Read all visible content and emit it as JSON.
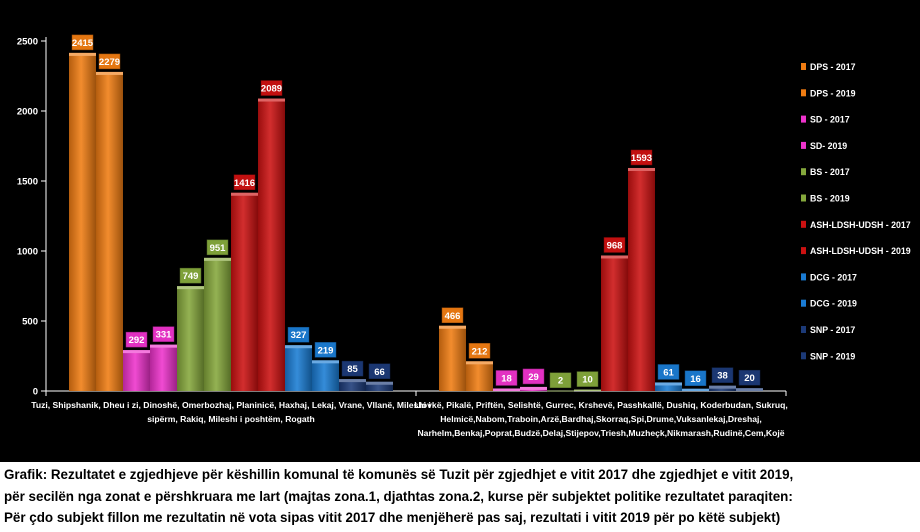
{
  "chart_data": {
    "type": "bar",
    "categories": [
      "Tuzi, Shipshanik, Dheu i zi, Dinoshë, Omerbozhaj, Planinicë, Haxhaj, Lekaj, Vrane, Vllanë, Mileshi i sipërm, Rakiq, Mileshi i poshtëm, Rogath",
      "Llovkë, Pikalë, Priftën, Selishtë, Gurrec, Krshevë, Passhkallë, Dushiq, Koderbudan, Sukruq, Helmicë,Nabom,Traboin,Arzë,Bardhaj,Skorraq,Spi,Drume,Vuksanlekaj,Dreshaj, Narhelm,Benkaj,Poprat,Budzë,Delaj,Stijepov,Triesh,Muzheçk,Nikmarash,Rudinë,Cem,Kojë"
    ],
    "category_lines": [
      [
        "Tuzi, Shipshanik, Dheu i zi, Dinoshë, Omerbozhaj, Planinicë, Haxhaj, Lekaj, Vrane, Vllanë, Mileshi i",
        "sipërm, Rakiq, Mileshi i poshtëm, Rogath"
      ],
      [
        "Llovkë, Pikalë, Priftën, Selishtë, Gurrec, Krshevë, Passhkallë, Dushiq, Koderbudan, Sukruq,",
        "Helmicë,Nabom,Traboin,Arzë,Bardhaj,Skorraq,Spi,Drume,Vuksanlekaj,Dreshaj,",
        "Narhelm,Benkaj,Poprat,Budzë,Delaj,Stijepov,Triesh,Muzheçk,Nikmarash,Rudinë,Cem,Kojë"
      ]
    ],
    "series": [
      {
        "name": "DPS - 2017",
        "color": "#f07c12",
        "values": [
          2415,
          466
        ]
      },
      {
        "name": "DPS - 2019",
        "color": "#f07c12",
        "values": [
          2279,
          212
        ]
      },
      {
        "name": "SD - 2017",
        "color": "#ee33cc",
        "values": [
          292,
          18
        ]
      },
      {
        "name": "SD- 2019",
        "color": "#ee33cc",
        "values": [
          331,
          29
        ]
      },
      {
        "name": "BS - 2017",
        "color": "#85a83c",
        "values": [
          749,
          2
        ]
      },
      {
        "name": "BS - 2019",
        "color": "#85a83c",
        "values": [
          951,
          10
        ]
      },
      {
        "name": "ASH-LDSH-UDSH - 2017",
        "color": "#cc1111",
        "values": [
          1416,
          968
        ]
      },
      {
        "name": "ASH-LDSH-UDSH - 2019",
        "color": "#cc1111",
        "values": [
          2089,
          1593
        ]
      },
      {
        "name": "DCG - 2017",
        "color": "#1a7cd4",
        "values": [
          327,
          61
        ]
      },
      {
        "name": "DCG - 2019",
        "color": "#1a7cd4",
        "values": [
          219,
          16
        ]
      },
      {
        "name": "SNP - 2017",
        "color": "#1c3a78",
        "values": [
          85,
          38
        ]
      },
      {
        "name": "SNP - 2019",
        "color": "#1c3a78",
        "values": [
          66,
          20
        ]
      }
    ],
    "ylim": [
      0,
      2500
    ],
    "yticks": [
      0,
      500,
      1000,
      1500,
      2000,
      2500
    ],
    "grid": false,
    "legend": "right",
    "background": "#000000",
    "title": "",
    "xlabel": "",
    "ylabel": ""
  },
  "caption": [
    "Grafik:  Rezultatet e zgjedhjeve për këshillin komunal të komunës së Tuzit për zgjedhjet e vitit 2017 dhe zgjedhjet e vitit 2019,",
    "për secilën nga zonat e përshkruara me lart (majtas zona.1, djathtas zona.2, kurse për subjektet politike rezultatet paraqiten:",
    "Për çdo subjekt fillon me rezultatin në vota sipas vitit 2017 dhe menjëherë pas saj, rezultati i vitit 2019 për po këtë subjekt)"
  ]
}
